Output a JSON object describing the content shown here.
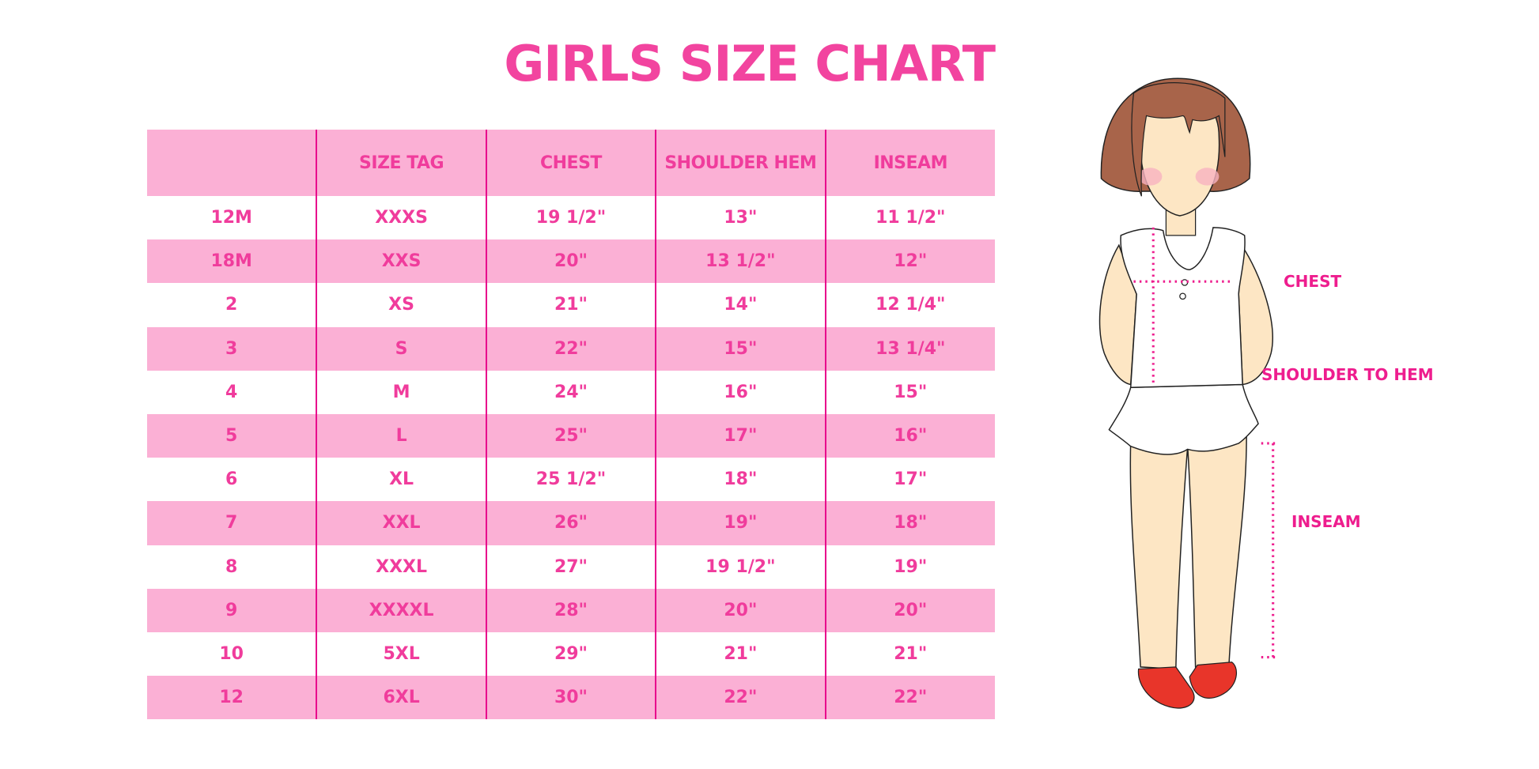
{
  "title": "GIRLS SIZE CHART",
  "table": {
    "headers": [
      "",
      "SIZE TAG",
      "CHEST",
      "SHOULDER HEM",
      "INSEAM"
    ],
    "rows": [
      [
        "12M",
        "XXXS",
        "19 1/2\"",
        "13\"",
        "11 1/2\""
      ],
      [
        "18M",
        "XXS",
        "20\"",
        "13 1/2\"",
        "12\""
      ],
      [
        "2",
        "XS",
        "21\"",
        "14\"",
        "12 1/4\""
      ],
      [
        "3",
        "S",
        "22\"",
        "15\"",
        "13 1/4\""
      ],
      [
        "4",
        "M",
        "24\"",
        "16\"",
        "15\""
      ],
      [
        "5",
        "L",
        "25\"",
        "17\"",
        "16\""
      ],
      [
        "6",
        "XL",
        "25 1/2\"",
        "18\"",
        "17\""
      ],
      [
        "7",
        "XXL",
        "26\"",
        "19\"",
        "18\""
      ],
      [
        "8",
        "XXXL",
        "27\"",
        "19 1/2\"",
        "19\""
      ],
      [
        "9",
        "XXXXL",
        "28\"",
        "20\"",
        "20\""
      ],
      [
        "10",
        "5XL",
        "29\"",
        "21\"",
        "21\""
      ],
      [
        "12",
        "6XL",
        "30\"",
        "22\"",
        "22\""
      ]
    ]
  },
  "figure": {
    "labels": {
      "chest": "CHEST",
      "shoulder_to_hem": "SHOULDER TO HEM",
      "inseam": "INSEAM"
    }
  },
  "colors": {
    "accent": "#f03c9c",
    "header_bg": "#fbb0d5",
    "divider": "#e8058c"
  }
}
